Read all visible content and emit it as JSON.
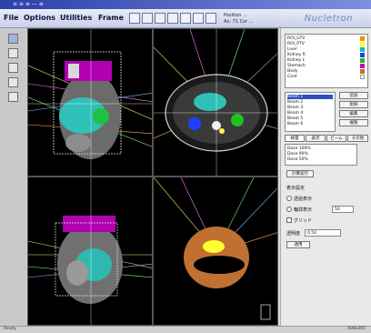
{
  "window": {
    "title": "≡ ≡ ≡  — ≡"
  },
  "menu": [
    {
      "label": "File"
    },
    {
      "label": "Options"
    },
    {
      "label": "Utilities"
    },
    {
      "label": "Frame"
    }
  ],
  "toolbar": {
    "readout_line1": "Position ...",
    "readout_line2": "Ax: 71 Cor ...",
    "brand": "Nucletron"
  },
  "roi_list": {
    "items": [
      {
        "label": "ROI_GTV",
        "color": "#ff8800"
      },
      {
        "label": "ROI_PTV",
        "color": "#ffff00"
      },
      {
        "label": "Liver",
        "color": "#00c0c0"
      },
      {
        "label": "Kidney R",
        "color": "#2040ff"
      },
      {
        "label": "Kidney L",
        "color": "#20c020"
      },
      {
        "label": "Stomach",
        "color": "#c000c0"
      },
      {
        "label": "Body",
        "color": "#c07030"
      },
      {
        "label": "Cord",
        "color": "#ffffff"
      }
    ]
  },
  "beam_list": {
    "items": [
      "Beam 1",
      "Beam 2",
      "Beam 3",
      "Beam 4",
      "Beam 5",
      "Beam 6"
    ],
    "buttons": [
      "追加",
      "削除",
      "編集",
      "複製"
    ]
  },
  "tabs": [
    "線量",
    "表示",
    "ビーム",
    "その他"
  ],
  "dose_list": {
    "items": [
      "Dose 100%",
      "Dose 90%",
      "Dose 50%"
    ],
    "button": "計算実行"
  },
  "options": {
    "heading": "表示設定",
    "radio_a": "透過表示",
    "radio_b": "輪郭表示",
    "radio_b_value": "50",
    "check": "グリッド",
    "opacity_label": "透明度",
    "opacity_value": "0.50",
    "apply": "適用"
  },
  "status": {
    "left": "Ready",
    "right": "408x365"
  }
}
